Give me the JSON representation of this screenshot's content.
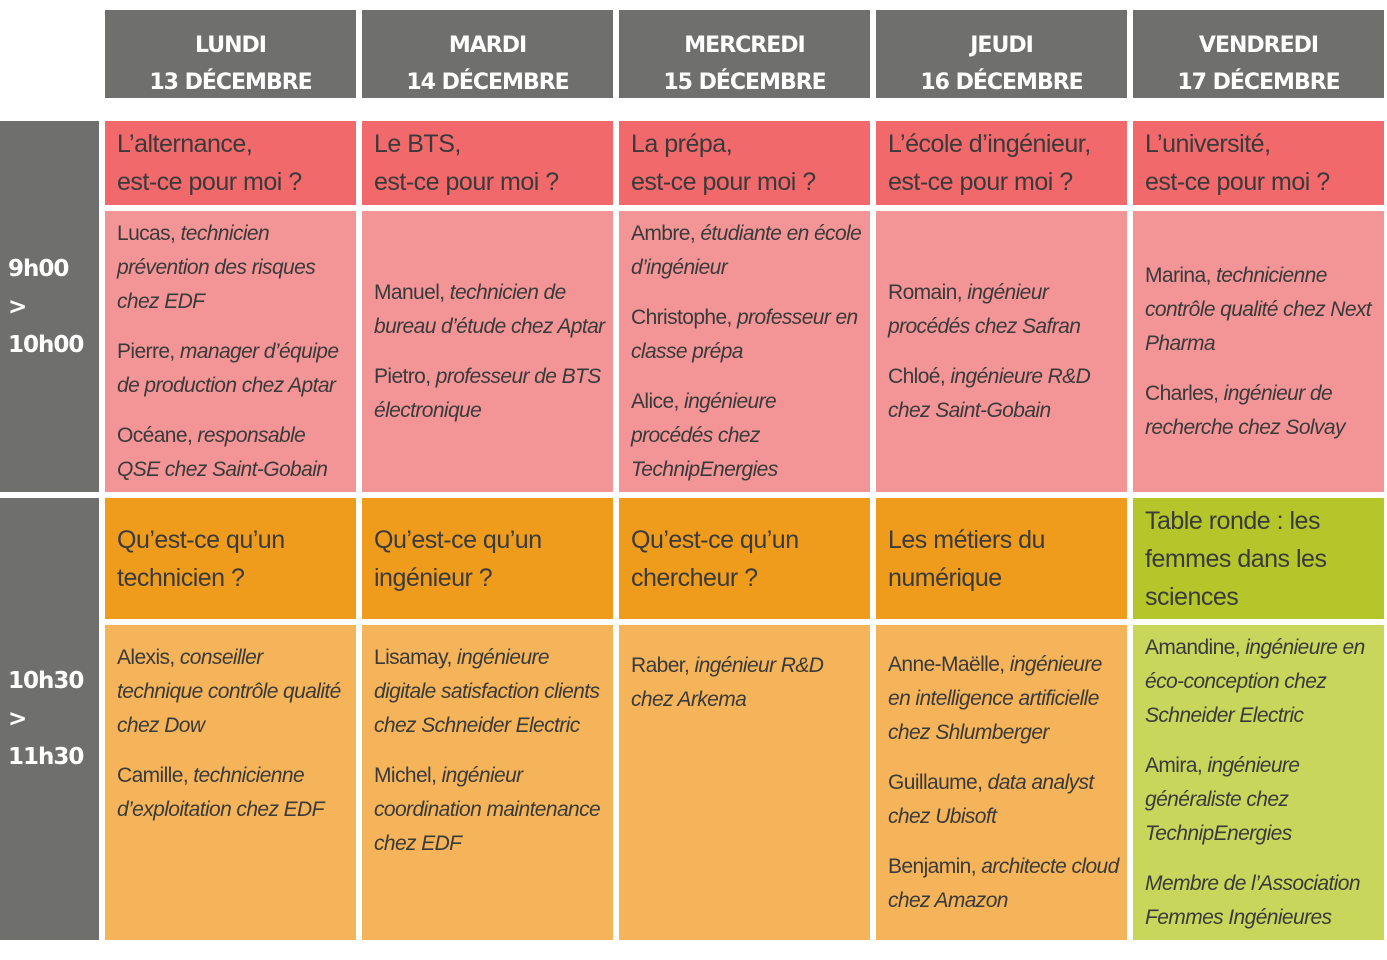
{
  "days": [
    {
      "day": "LUNDI",
      "date": "13 DÉCEMBRE"
    },
    {
      "day": "MARDI",
      "date": "14 DÉCEMBRE"
    },
    {
      "day": "MERCREDI",
      "date": "15 DÉCEMBRE"
    },
    {
      "day": "JEUDI",
      "date": "16 DÉCEMBRE"
    },
    {
      "day": "VENDREDI",
      "date": "17 DÉCEMBRE"
    }
  ],
  "slots": [
    {
      "start": "9h00",
      "end": "> 10h00"
    },
    {
      "start": "10h30",
      "end": "> 11h30"
    }
  ],
  "morning": [
    {
      "topic": [
        "L’alternance,",
        "est-ce pour moi ?"
      ],
      "speakers": [
        {
          "name": "Lucas, ",
          "role": "technicien prévention des risques chez EDF"
        },
        {
          "name": "Pierre, ",
          "role": "manager d’équipe de production chez Aptar"
        },
        {
          "name": "Océane, ",
          "role": "responsable QSE chez Saint-Gobain"
        }
      ]
    },
    {
      "topic": [
        "Le BTS,",
        "est-ce pour moi ?"
      ],
      "speakers": [
        {
          "name": "Manuel, ",
          "role": "technicien de bureau d’étude chez Aptar"
        },
        {
          "name": "Pietro, ",
          "role": "professeur de BTS électronique"
        }
      ]
    },
    {
      "topic": [
        "La prépa,",
        "est-ce pour moi ?"
      ],
      "speakers": [
        {
          "name": "Ambre, ",
          "role": "étudiante en école d’ingénieur"
        },
        {
          "name": "Christophe, ",
          "role": "professeur en classe prépa"
        },
        {
          "name": "Alice, ",
          "role": "ingénieure procédés chez TechnipEnergies"
        }
      ]
    },
    {
      "topic": [
        "L’école d’ingénieur,",
        "est-ce pour moi ?"
      ],
      "speakers": [
        {
          "name": "Romain, ",
          "role": "ingénieur procédés chez Safran"
        },
        {
          "name": "Chloé, ",
          "role": "ingénieure R&D chez Saint-Gobain"
        }
      ]
    },
    {
      "topic": [
        "L’université,",
        "est-ce pour moi ?"
      ],
      "speakers": [
        {
          "name": "Marina, ",
          "role": "technicienne contrôle qualité chez Next Pharma"
        },
        {
          "name": "Charles, ",
          "role": "ingénieur de recherche chez Solvay"
        }
      ]
    }
  ],
  "late": [
    {
      "topic": [
        "Qu’est-ce qu’un",
        "technicien ?"
      ],
      "speakers": [
        {
          "name": "Alexis, ",
          "role": "conseiller technique contrôle qualité chez Dow"
        },
        {
          "name": "Camille, ",
          "role": "technicienne d’exploitation chez EDF"
        }
      ]
    },
    {
      "topic": [
        "Qu’est-ce qu’un",
        "ingénieur ?"
      ],
      "speakers": [
        {
          "name": "Lisamay, ",
          "role": "ingénieure digitale satisfaction clients chez Schneider Electric"
        },
        {
          "name": "Michel, ",
          "role": "ingénieur coordination maintenance chez EDF"
        }
      ]
    },
    {
      "topic": [
        "Qu’est-ce qu’un",
        "chercheur ?"
      ],
      "speakers": [
        {
          "name": "Raber, ",
          "role": "ingénieur R&D chez Arkema"
        }
      ]
    },
    {
      "topic": [
        "Les métiers du",
        "numérique"
      ],
      "speakers": [
        {
          "name": "Anne-Maëlle, ",
          "role": "ingénieure en intelligence artificielle chez Shlumberger"
        },
        {
          "name": "Guillaume, ",
          "role": "data analyst chez Ubisoft"
        },
        {
          "name": "Benjamin, ",
          "role": "architecte cloud chez Amazon"
        }
      ]
    },
    {
      "topic": [
        "Table ronde : les",
        "femmes dans les",
        "sciences"
      ],
      "speakers": [
        {
          "name": "Amandine, ",
          "role": "ingénieure en éco-conception chez Schneider Electric"
        },
        {
          "name": "Amira, ",
          "role": "ingénieure généraliste chez TechnipEnergies"
        },
        {
          "name": "",
          "role": "Membre de l’Association Femmes Ingénieures"
        }
      ]
    }
  ],
  "colors": {
    "header": "#6f6f6e",
    "pink_top": "#f2696c",
    "pink": "#f39596",
    "orange_top": "#ef9c1c",
    "orange": "#f5b459",
    "green_top": "#b5c62a",
    "green": "#c8d65c"
  }
}
